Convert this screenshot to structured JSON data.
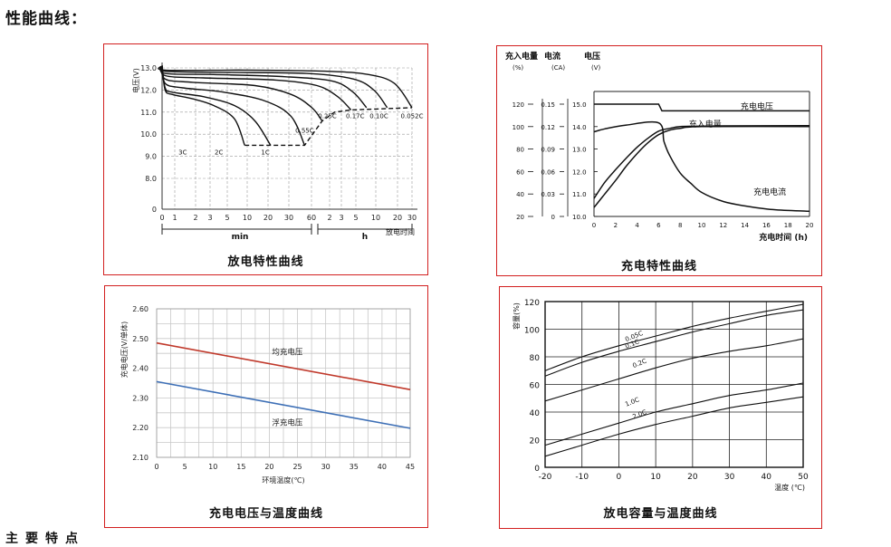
{
  "header": "性能曲线：",
  "footer": "主要特点",
  "colors": {
    "border": "#d21f1f",
    "red_series": "#c0392b",
    "blue_series": "#3d6fb6",
    "grid": "#888888"
  },
  "chart_data": [
    {
      "id": "discharge",
      "type": "line",
      "title": "放电特性曲线",
      "ylabel": "电压(V)",
      "xlabel": "放电时间",
      "y_ticks": [
        "13.0",
        "12.0",
        "11.0",
        "10.0",
        "9.0",
        "8.0",
        "0"
      ],
      "x_ticks": [
        "0",
        "1",
        "2",
        "3",
        "5",
        "10",
        "20",
        "30",
        "60",
        "2",
        "3",
        "5",
        "10",
        "20",
        "30"
      ],
      "unit_min": "min",
      "unit_h": "h",
      "curve_labels": [
        "3C",
        "2C",
        "1C",
        "0.55C",
        "0.25C",
        "0.17C",
        "0.10C",
        "0.052C"
      ],
      "series": [
        {
          "name": "3C",
          "values": [
            [
              0,
              13.1
            ],
            [
              0.3,
              12.0
            ],
            [
              1,
              11.8
            ],
            [
              3,
              11.6
            ],
            [
              5,
              11.3
            ],
            [
              7,
              10.7
            ],
            [
              8,
              9.5
            ]
          ]
        },
        {
          "name": "2C",
          "values": [
            [
              0,
              13.1
            ],
            [
              0.3,
              12.1
            ],
            [
              1,
              11.9
            ],
            [
              4,
              11.7
            ],
            [
              7,
              11.3
            ],
            [
              9,
              10.6
            ],
            [
              10.5,
              9.5
            ]
          ]
        },
        {
          "name": "1C",
          "values": [
            [
              0,
              13.1
            ],
            [
              0.3,
              12.3
            ],
            [
              2,
              12.1
            ],
            [
              6,
              11.9
            ],
            [
              10,
              11.5
            ],
            [
              12.5,
              10.8
            ],
            [
              13.8,
              9.5
            ]
          ]
        },
        {
          "name": "0.55C",
          "values": [
            [
              0,
              13.1
            ],
            [
              0.3,
              12.5
            ],
            [
              3,
              12.35
            ],
            [
              9,
              12.2
            ],
            [
              12.5,
              11.8
            ],
            [
              14.5,
              11.2
            ],
            [
              15.5,
              10.6
            ]
          ]
        },
        {
          "name": "0.25C",
          "values": [
            [
              0,
              13.1
            ],
            [
              0.3,
              12.65
            ],
            [
              4,
              12.55
            ],
            [
              11,
              12.45
            ],
            [
              15,
              12.2
            ],
            [
              17,
              11.7
            ],
            [
              18.3,
              11.1
            ]
          ]
        },
        {
          "name": "0.17C",
          "values": [
            [
              0,
              13.1
            ],
            [
              0.3,
              12.75
            ],
            [
              5,
              12.7
            ],
            [
              12,
              12.6
            ],
            [
              16.5,
              12.4
            ],
            [
              18.5,
              11.9
            ],
            [
              19.8,
              11.2
            ]
          ]
        },
        {
          "name": "0.10C",
          "values": [
            [
              0,
              13.1
            ],
            [
              0.3,
              12.85
            ],
            [
              6,
              12.8
            ],
            [
              14,
              12.75
            ],
            [
              18.5,
              12.5
            ],
            [
              20.5,
              12.0
            ],
            [
              21.8,
              11.2
            ]
          ]
        },
        {
          "name": "0.052C",
          "values": [
            [
              0,
              13.1
            ],
            [
              0.3,
              12.9
            ],
            [
              8,
              12.9
            ],
            [
              16,
              12.85
            ],
            [
              20,
              12.7
            ],
            [
              22.5,
              12.3
            ],
            [
              24.2,
              11.2
            ]
          ]
        }
      ],
      "cutoff": [
        [
          8,
          9.5
        ],
        [
          10.5,
          9.5
        ],
        [
          13.8,
          9.5
        ],
        [
          15.5,
          10.6
        ],
        [
          16.7,
          11.0
        ],
        [
          18.3,
          11.1
        ],
        [
          24.2,
          11.2
        ]
      ]
    },
    {
      "id": "charge",
      "type": "line",
      "title": "充电特性曲线",
      "xlabel": "充电时间 (h)",
      "axis_headers": [
        [
          "充入电量",
          "(%)"
        ],
        [
          "电流",
          "(CA)"
        ],
        [
          "电压",
          "(V)"
        ]
      ],
      "y_capacity_ticks": [
        "120",
        "100",
        "80",
        "60",
        "40",
        "20",
        "0"
      ],
      "y_current_ticks": [
        "0.15",
        "0.12",
        "0.09",
        "0.06",
        "0.03",
        "0"
      ],
      "y_voltage_ticks": [
        "15.0",
        "14.0",
        "13.0",
        "12.0",
        "11.0",
        "10.0"
      ],
      "x_ticks": [
        "0",
        "2",
        "4",
        "6",
        "8",
        "10",
        "12",
        "14",
        "16",
        "18",
        "20"
      ],
      "series": [
        {
          "name": "充电电压",
          "values": [
            [
              0,
              15.0
            ],
            [
              6,
              15.0
            ],
            [
              6.3,
              14.7
            ],
            [
              20,
              14.7
            ]
          ]
        },
        {
          "name": "充入电量",
          "values": [
            [
              0,
              20
            ],
            [
              1,
              38
            ],
            [
              2,
              52
            ],
            [
              3,
              65
            ],
            [
              4,
              77
            ],
            [
              5,
              87
            ],
            [
              6,
              95
            ],
            [
              7,
              98
            ],
            [
              8,
              100
            ],
            [
              10,
              100.5
            ],
            [
              12,
              100.8
            ],
            [
              20,
              101
            ]
          ]
        },
        {
          "name": "充电电流",
          "values": [
            [
              0,
              0.113
            ],
            [
              1,
              0.117
            ],
            [
              3,
              0.122
            ],
            [
              6,
              0.125
            ],
            [
              6.5,
              0.1
            ],
            [
              7,
              0.082
            ],
            [
              8,
              0.058
            ],
            [
              9,
              0.044
            ],
            [
              10,
              0.032
            ],
            [
              12,
              0.02
            ],
            [
              14,
              0.014
            ],
            [
              16,
              0.01
            ],
            [
              18,
              0.008
            ],
            [
              20,
              0.007
            ]
          ]
        },
        {
          "name": "capacity2",
          "values": [
            [
              0,
              10
            ],
            [
              1,
              25
            ],
            [
              2,
              40
            ],
            [
              3,
              56
            ],
            [
              4,
              70
            ],
            [
              5,
              82
            ],
            [
              6,
              91
            ],
            [
              7,
              96
            ],
            [
              8,
              98
            ],
            [
              10,
              100
            ],
            [
              20,
              100
            ]
          ]
        }
      ],
      "labels": [
        "充电电压",
        "充入电量",
        "充电电流"
      ]
    },
    {
      "id": "volt_temp",
      "type": "line",
      "title": "充电电压与温度曲线",
      "ylabel": "充电电压(V/单体)",
      "xlabel": "环境温度(℃)",
      "y_ticks": [
        "2.60",
        "2.50",
        "2.40",
        "2.30",
        "2.20",
        "2.10"
      ],
      "x_ticks": [
        "0",
        "5",
        "10",
        "15",
        "20",
        "25",
        "30",
        "35",
        "40",
        "45"
      ],
      "ylim": [
        2.1,
        2.6
      ],
      "xlim": [
        0,
        45
      ],
      "series": [
        {
          "name": "均充电压",
          "values": [
            [
              0,
              2.485
            ],
            [
              45,
              2.328
            ]
          ]
        },
        {
          "name": "浮充电压",
          "values": [
            [
              0,
              2.355
            ],
            [
              45,
              2.198
            ]
          ]
        }
      ]
    },
    {
      "id": "cap_temp",
      "type": "line",
      "title": "放电容量与温度曲线",
      "ylabel": "容量(%)",
      "xlabel": "温度 (℃)",
      "y_ticks": [
        "120",
        "100",
        "80",
        "60",
        "40",
        "20",
        "0"
      ],
      "x_ticks": [
        "-20",
        "-10",
        "0",
        "10",
        "20",
        "30",
        "40",
        "50"
      ],
      "ylim": [
        0,
        120
      ],
      "xlim": [
        -20,
        50
      ],
      "series": [
        {
          "name": "0.05C",
          "values": [
            [
              -20,
              70
            ],
            [
              -10,
              80
            ],
            [
              0,
              88
            ],
            [
              10,
              95
            ],
            [
              20,
              102
            ],
            [
              30,
              108
            ],
            [
              40,
              113
            ],
            [
              50,
              118
            ]
          ]
        },
        {
          "name": "0.1C",
          "values": [
            [
              -20,
              66
            ],
            [
              -10,
              76
            ],
            [
              0,
              84
            ],
            [
              10,
              91
            ],
            [
              20,
              98
            ],
            [
              30,
              104
            ],
            [
              40,
              110
            ],
            [
              50,
              114
            ]
          ]
        },
        {
          "name": "0.2C",
          "values": [
            [
              -20,
              48
            ],
            [
              -10,
              56
            ],
            [
              0,
              64
            ],
            [
              10,
              72
            ],
            [
              20,
              79
            ],
            [
              30,
              84
            ],
            [
              40,
              88
            ],
            [
              50,
              93
            ]
          ]
        },
        {
          "name": "1.0C",
          "values": [
            [
              -20,
              16
            ],
            [
              -10,
              24
            ],
            [
              0,
              32
            ],
            [
              10,
              40
            ],
            [
              20,
              46
            ],
            [
              30,
              52
            ],
            [
              40,
              56
            ],
            [
              50,
              61
            ]
          ]
        },
        {
          "name": "2.0C",
          "values": [
            [
              -20,
              8
            ],
            [
              -10,
              16
            ],
            [
              0,
              24
            ],
            [
              10,
              31
            ],
            [
              20,
              37
            ],
            [
              30,
              43
            ],
            [
              40,
              47
            ],
            [
              50,
              51
            ]
          ]
        }
      ]
    }
  ],
  "captions": {
    "discharge": "放电特性曲线",
    "charge": "充电特性曲线",
    "volt_temp": "充电电压与温度曲线",
    "cap_temp": "放电容量与温度曲线"
  }
}
